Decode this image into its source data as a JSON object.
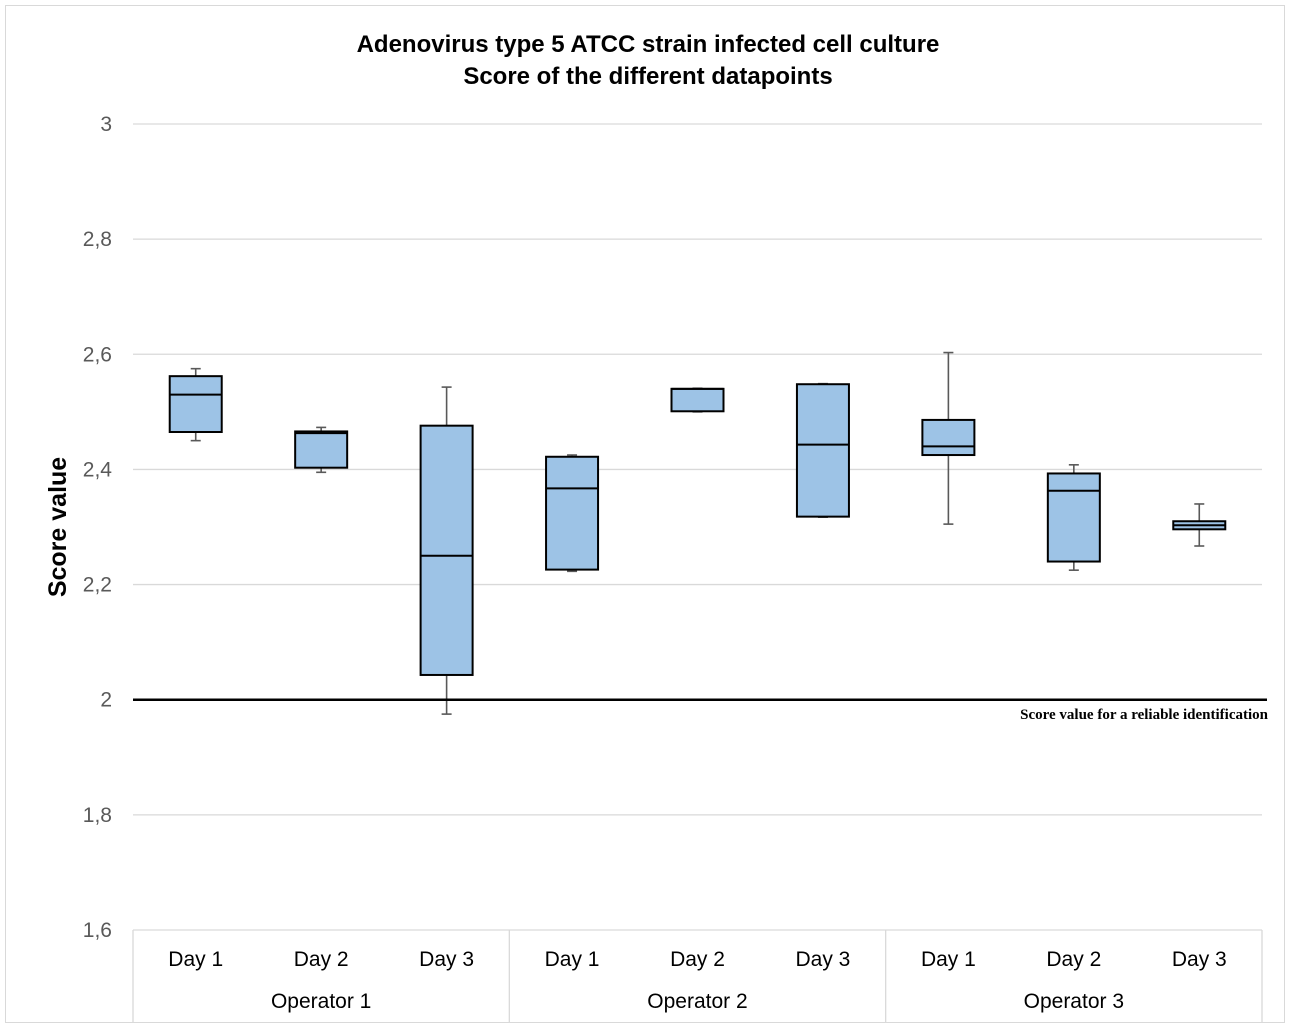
{
  "chart_data": {
    "type": "box",
    "title": [
      "Adenovirus type 5 ATCC strain infected cell culture",
      "Score of the different datapoints"
    ],
    "ylabel": "Score value",
    "xlabel": "",
    "ylim": [
      1.6,
      3.0
    ],
    "yticks": [
      {
        "value": 1.6,
        "label": "1,6"
      },
      {
        "value": 1.8,
        "label": "1,8"
      },
      {
        "value": 2.0,
        "label": "2"
      },
      {
        "value": 2.2,
        "label": "2,2"
      },
      {
        "value": 2.4,
        "label": "2,4"
      },
      {
        "value": 2.6,
        "label": "2,6"
      },
      {
        "value": 2.8,
        "label": "2,8"
      },
      {
        "value": 3.0,
        "label": "3"
      }
    ],
    "grid": true,
    "groups": [
      "Operator 1",
      "Operator 2",
      "Operator 3"
    ],
    "categories": [
      "Day 1",
      "Day 2",
      "Day 3",
      "Day 1",
      "Day 2",
      "Day 3",
      "Day 1",
      "Day 2",
      "Day 3"
    ],
    "boxes": [
      {
        "group": "Operator 1",
        "category": "Day 1",
        "min": 2.45,
        "q1": 2.465,
        "median": 2.53,
        "q3": 2.562,
        "max": 2.575
      },
      {
        "group": "Operator 1",
        "category": "Day 2",
        "min": 2.395,
        "q1": 2.403,
        "median": 2.463,
        "q3": 2.466,
        "max": 2.473
      },
      {
        "group": "Operator 1",
        "category": "Day 3",
        "min": 1.975,
        "q1": 2.043,
        "median": 2.25,
        "q3": 2.476,
        "max": 2.543
      },
      {
        "group": "Operator 2",
        "category": "Day 1",
        "min": 2.223,
        "q1": 2.226,
        "median": 2.367,
        "q3": 2.422,
        "max": 2.425
      },
      {
        "group": "Operator 2",
        "category": "Day 2",
        "min": 2.5,
        "q1": 2.501,
        "median": 2.54,
        "q3": 2.54,
        "max": 2.541
      },
      {
        "group": "Operator 2",
        "category": "Day 3",
        "min": 2.317,
        "q1": 2.318,
        "median": 2.443,
        "q3": 2.548,
        "max": 2.549
      },
      {
        "group": "Operator 3",
        "category": "Day 1",
        "min": 2.305,
        "q1": 2.425,
        "median": 2.44,
        "q3": 2.486,
        "max": 2.603
      },
      {
        "group": "Operator 3",
        "category": "Day 2",
        "min": 2.225,
        "q1": 2.24,
        "median": 2.363,
        "q3": 2.393,
        "max": 2.408
      },
      {
        "group": "Operator 3",
        "category": "Day 3",
        "min": 2.267,
        "q1": 2.296,
        "median": 2.303,
        "q3": 2.31,
        "max": 2.34
      }
    ],
    "reference_line": {
      "value": 2.0,
      "label": "Score value for a reliable identification"
    },
    "colors": {
      "box_fill": "#9dc3e6",
      "box_stroke": "#000000",
      "whisker": "#595959",
      "grid": "#d9d9d9",
      "reference": "#000000"
    }
  }
}
